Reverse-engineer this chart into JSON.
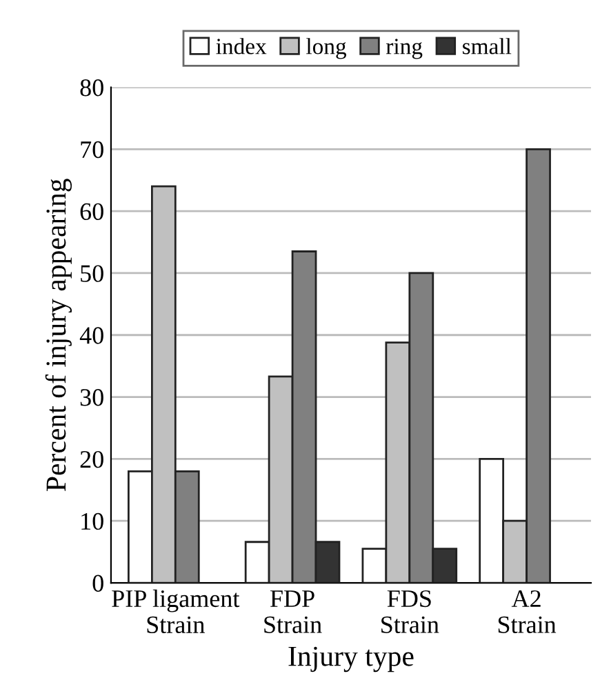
{
  "chart_data": {
    "type": "bar",
    "xlabel": "Injury type",
    "ylabel": "Percent of injury appearing",
    "categories": [
      "PIP ligament\nStrain",
      "FDP\nStrain",
      "FDS\nStrain",
      "A2\nStrain"
    ],
    "series": [
      {
        "name": "index",
        "color": "#ffffff",
        "values": [
          18,
          6.6,
          5.5,
          20
        ]
      },
      {
        "name": "long",
        "color": "#c0c0c0",
        "values": [
          64,
          33.3,
          38.8,
          10
        ]
      },
      {
        "name": "ring",
        "color": "#808080",
        "values": [
          18,
          53.5,
          50,
          70
        ]
      },
      {
        "name": "small",
        "color": "#333333",
        "values": [
          null,
          6.6,
          5.5,
          null
        ]
      }
    ],
    "ylim": [
      0,
      80
    ],
    "yticks": [
      0,
      10,
      20,
      30,
      40,
      50,
      60,
      70,
      80
    ],
    "grid": "y",
    "legend": "top"
  }
}
